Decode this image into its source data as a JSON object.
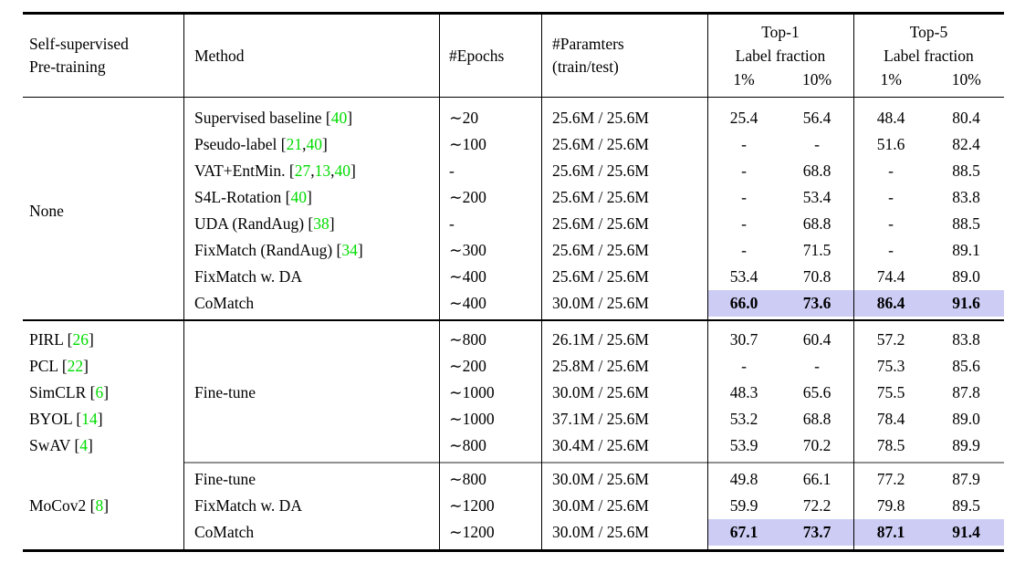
{
  "colors": {
    "citation_green": "#00dc00",
    "highlight_lavender": "#ccccf5",
    "partial_rule_gray": "#909090",
    "rule_black": "#000000",
    "page_background": "#ffffff"
  },
  "table": {
    "header": {
      "col_pretraining_line1": "Self-supervised",
      "col_pretraining_line2": "Pre-training",
      "col_method": "Method",
      "col_epochs": "#Epochs",
      "col_params_line1": "#Paramters",
      "col_params_line2": "(train/test)",
      "group_top1": {
        "title": "Top-1",
        "subtitle": "Label fraction",
        "sub1": "1%",
        "sub2": "10%"
      },
      "group_top5": {
        "title": "Top-5",
        "subtitle": "Label fraction",
        "sub1": "1%",
        "sub2": "10%"
      }
    },
    "blocks": [
      {
        "pretraining": "None",
        "rows": [
          {
            "method": [
              {
                "t": "Supervised baseline ["
              },
              {
                "t": "40",
                "g": true
              },
              {
                "t": "]"
              }
            ],
            "epochs": "∼20",
            "params": "25.6M / 25.6M",
            "t1a": "25.4",
            "t1b": "56.4",
            "t5a": "48.4",
            "t5b": "80.4"
          },
          {
            "method": [
              {
                "t": "Pseudo-label ["
              },
              {
                "t": "21",
                "g": true
              },
              {
                "t": ", "
              },
              {
                "t": "40",
                "g": true
              },
              {
                "t": "]"
              }
            ],
            "epochs": "∼100",
            "params": "25.6M / 25.6M",
            "t1a": "-",
            "t1b": "-",
            "t5a": "51.6",
            "t5b": "82.4"
          },
          {
            "method": [
              {
                "t": "VAT+EntMin. ["
              },
              {
                "t": "27",
                "g": true
              },
              {
                "t": ", "
              },
              {
                "t": "13",
                "g": true
              },
              {
                "t": ", "
              },
              {
                "t": "40",
                "g": true
              },
              {
                "t": "]"
              }
            ],
            "epochs": "-",
            "params": "25.6M / 25.6M",
            "t1a": "-",
            "t1b": "68.8",
            "t5a": "-",
            "t5b": "88.5"
          },
          {
            "method": [
              {
                "t": "S4L-Rotation ["
              },
              {
                "t": "40",
                "g": true
              },
              {
                "t": "]"
              }
            ],
            "epochs": "∼200",
            "params": "25.6M / 25.6M",
            "t1a": "-",
            "t1b": "53.4",
            "t5a": "-",
            "t5b": "83.8"
          },
          {
            "method": [
              {
                "t": "UDA (RandAug) ["
              },
              {
                "t": "38",
                "g": true
              },
              {
                "t": "]"
              }
            ],
            "epochs": "-",
            "params": "25.6M / 25.6M",
            "t1a": "-",
            "t1b": "68.8",
            "t5a": "-",
            "t5b": "88.5"
          },
          {
            "method": [
              {
                "t": "FixMatch (RandAug) ["
              },
              {
                "t": "34",
                "g": true
              },
              {
                "t": "]"
              }
            ],
            "epochs": "∼300",
            "params": "25.6M / 25.6M",
            "t1a": "-",
            "t1b": "71.5",
            "t5a": "-",
            "t5b": "89.1"
          },
          {
            "method": [
              {
                "t": "FixMatch w. DA"
              }
            ],
            "epochs": "∼400",
            "params": "25.6M / 25.6M",
            "t1a": "53.4",
            "t1b": "70.8",
            "t5a": "74.4",
            "t5b": "89.0"
          },
          {
            "method": [
              {
                "t": "CoMatch"
              }
            ],
            "epochs": "∼400",
            "params": "30.0M / 25.6M",
            "t1a": "66.0",
            "t1b": "73.6",
            "t5a": "86.4",
            "t5b": "91.6",
            "hl": true
          }
        ]
      },
      {
        "method": "Fine-tune",
        "rows": [
          {
            "pretrain": [
              {
                "t": "PIRL ["
              },
              {
                "t": "26",
                "g": true
              },
              {
                "t": "]"
              }
            ],
            "epochs": "∼800",
            "params": "26.1M / 25.6M",
            "t1a": "30.7",
            "t1b": "60.4",
            "t5a": "57.2",
            "t5b": "83.8"
          },
          {
            "pretrain": [
              {
                "t": "PCL ["
              },
              {
                "t": "22",
                "g": true
              },
              {
                "t": "]"
              }
            ],
            "epochs": "∼200",
            "params": "25.8M / 25.6M",
            "t1a": "-",
            "t1b": "-",
            "t5a": "75.3",
            "t5b": "85.6"
          },
          {
            "pretrain": [
              {
                "t": "SimCLR ["
              },
              {
                "t": "6",
                "g": true
              },
              {
                "t": "]"
              }
            ],
            "epochs": "∼1000",
            "params": "30.0M / 25.6M",
            "t1a": "48.3",
            "t1b": "65.6",
            "t5a": "75.5",
            "t5b": "87.8"
          },
          {
            "pretrain": [
              {
                "t": "BYOL ["
              },
              {
                "t": "14",
                "g": true
              },
              {
                "t": "]"
              }
            ],
            "epochs": "∼1000",
            "params": "37.1M / 25.6M",
            "t1a": "53.2",
            "t1b": "68.8",
            "t5a": "78.4",
            "t5b": "89.0"
          },
          {
            "pretrain": [
              {
                "t": "SwAV ["
              },
              {
                "t": "4",
                "g": true
              },
              {
                "t": "]"
              }
            ],
            "epochs": "∼800",
            "params": "30.4M / 25.6M",
            "t1a": "53.9",
            "t1b": "70.2",
            "t5a": "78.5",
            "t5b": "89.9"
          }
        ]
      },
      {
        "pretraining": [
          {
            "t": "MoCov2 ["
          },
          {
            "t": "8",
            "g": true
          },
          {
            "t": "]"
          }
        ],
        "rows": [
          {
            "method": [
              {
                "t": "Fine-tune"
              }
            ],
            "epochs": "∼800",
            "params": "30.0M / 25.6M",
            "t1a": "49.8",
            "t1b": "66.1",
            "t5a": "77.2",
            "t5b": "87.9"
          },
          {
            "method": [
              {
                "t": "FixMatch w. DA"
              }
            ],
            "epochs": "∼1200",
            "params": "30.0M / 25.6M",
            "t1a": "59.9",
            "t1b": "72.2",
            "t5a": "79.8",
            "t5b": "89.5"
          },
          {
            "method": [
              {
                "t": "CoMatch"
              }
            ],
            "epochs": "∼1200",
            "params": "30.0M / 25.6M",
            "t1a": "67.1",
            "t1b": "73.7",
            "t5a": "87.1",
            "t5b": "91.4",
            "hl": true
          }
        ]
      }
    ]
  }
}
